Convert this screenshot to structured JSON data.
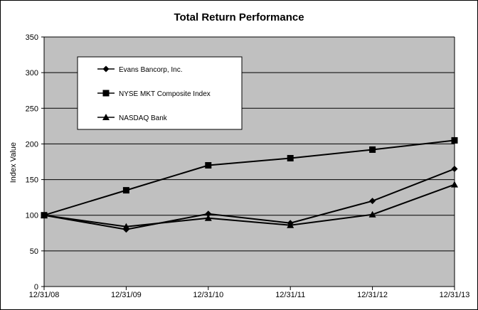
{
  "chart_data": {
    "type": "line",
    "title": "Total Return Performance",
    "xlabel": "",
    "ylabel": "Index Value",
    "ylim": [
      0,
      350
    ],
    "y_ticks": [
      0,
      50,
      100,
      150,
      200,
      250,
      300,
      350
    ],
    "categories": [
      "12/31/08",
      "12/31/09",
      "12/31/10",
      "12/31/11",
      "12/31/12",
      "12/31/13"
    ],
    "grid": true,
    "legend_position": "top-left",
    "series": [
      {
        "name": "Evans Bancorp, Inc.",
        "marker": "diamond",
        "color": "#000000",
        "values": [
          100,
          80,
          102,
          89,
          120,
          165
        ]
      },
      {
        "name": "NYSE MKT Composite Index",
        "marker": "square",
        "color": "#000000",
        "values": [
          100,
          135,
          170,
          180,
          192,
          205
        ]
      },
      {
        "name": "NASDAQ Bank",
        "marker": "triangle",
        "color": "#000000",
        "values": [
          100,
          84,
          96,
          86,
          101,
          143
        ]
      }
    ]
  }
}
